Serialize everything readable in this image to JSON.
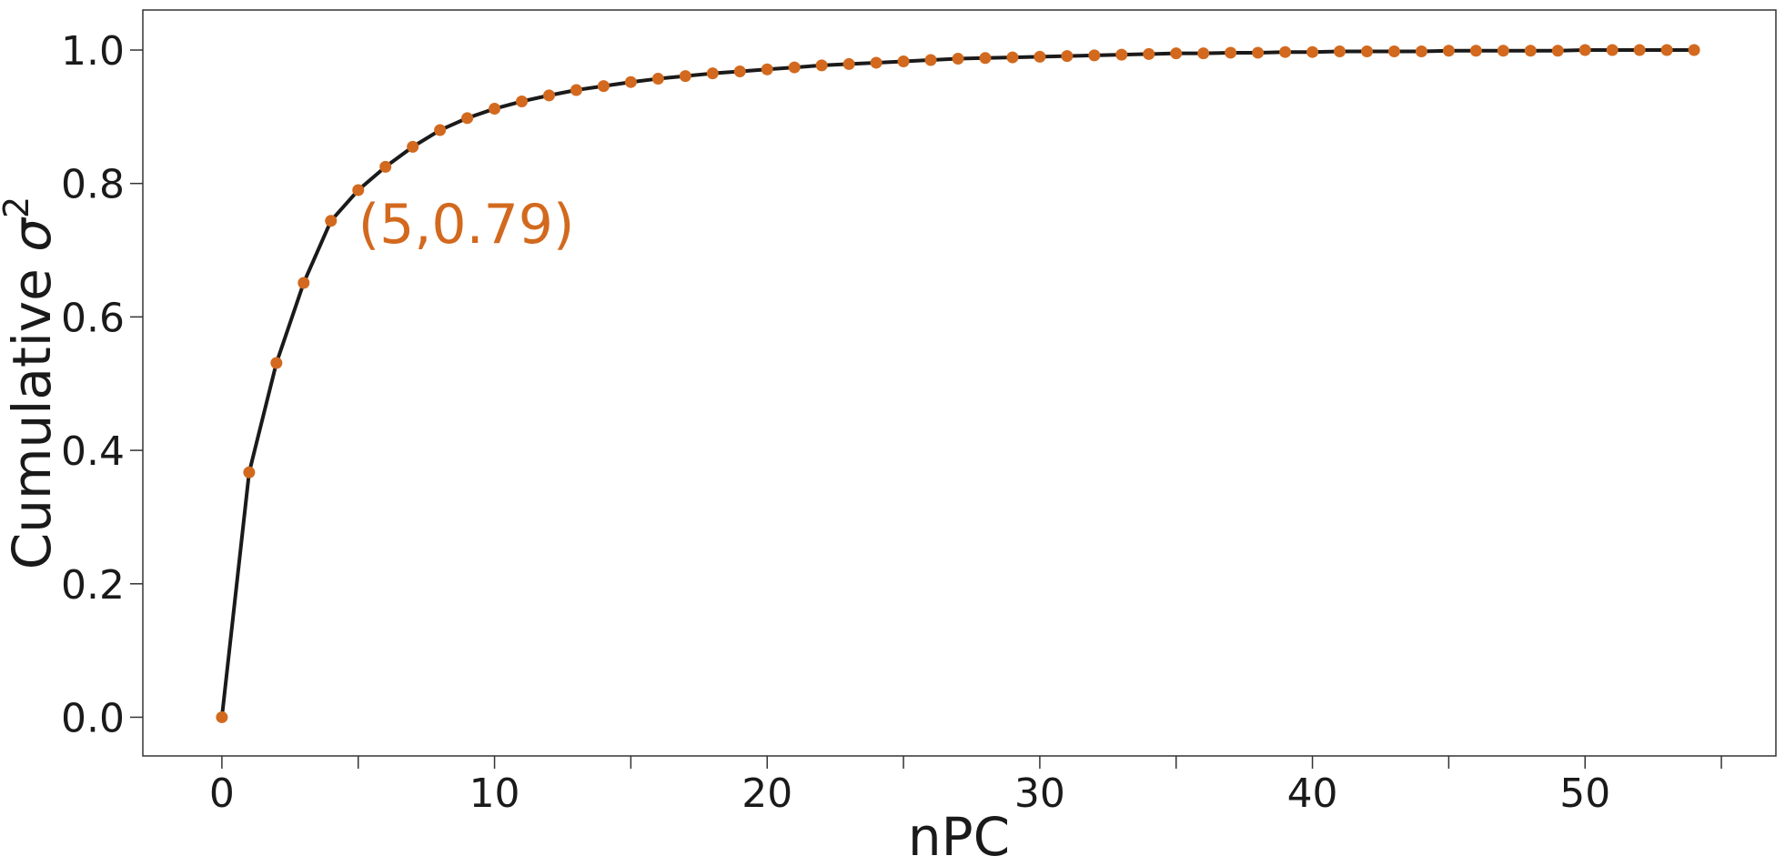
{
  "chart_data": {
    "type": "line",
    "title": "",
    "xlabel": "nPC",
    "ylabel_prefix": "Cumulative ",
    "ylabel_symbol": "σ",
    "ylabel_superscript": "2",
    "xlim": [
      -2.9,
      57
    ],
    "ylim": [
      -0.058,
      1.06
    ],
    "grid": false,
    "legend": "none",
    "x_ticks": [
      0,
      10,
      20,
      30,
      40,
      50
    ],
    "x_tick_labels": [
      "0",
      "10",
      "20",
      "30",
      "40",
      "50"
    ],
    "x_minor_ticks": [
      5,
      15,
      25,
      35,
      45,
      55
    ],
    "y_ticks": [
      0.0,
      0.2,
      0.4,
      0.6,
      0.8,
      1.0
    ],
    "y_tick_labels": [
      "0.0",
      "0.2",
      "0.4",
      "0.6",
      "0.8",
      "1.0"
    ],
    "line_color": "#1a1a1a",
    "marker_color": "#d2691e",
    "series": [
      {
        "x": [
          0,
          1,
          2,
          3,
          4,
          5,
          6,
          7,
          8,
          9,
          10,
          11,
          12,
          13,
          14,
          15,
          16,
          17,
          18,
          19,
          20,
          21,
          22,
          23,
          24,
          25,
          26,
          27,
          28,
          29,
          30,
          31,
          32,
          33,
          34,
          35,
          36,
          37,
          38,
          39,
          40,
          41,
          42,
          43,
          44,
          45,
          46,
          47,
          48,
          49,
          50,
          51,
          52,
          53,
          54
        ],
        "values": [
          0.0,
          0.367,
          0.531,
          0.651,
          0.744,
          0.79,
          0.825,
          0.855,
          0.88,
          0.898,
          0.912,
          0.923,
          0.932,
          0.94,
          0.946,
          0.952,
          0.957,
          0.961,
          0.965,
          0.968,
          0.971,
          0.974,
          0.977,
          0.979,
          0.981,
          0.983,
          0.985,
          0.987,
          0.988,
          0.989,
          0.99,
          0.991,
          0.992,
          0.993,
          0.994,
          0.995,
          0.995,
          0.996,
          0.996,
          0.997,
          0.997,
          0.998,
          0.998,
          0.998,
          0.998,
          0.999,
          0.999,
          0.999,
          0.999,
          0.999,
          1.0,
          1.0,
          1.0,
          1.0,
          1.0
        ]
      }
    ],
    "annotations": [
      {
        "text": "(5,0.79)",
        "x": 5,
        "y": 0.79,
        "color": "#d2691e"
      }
    ]
  }
}
